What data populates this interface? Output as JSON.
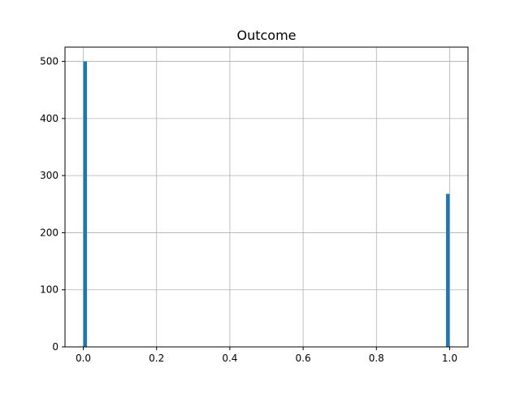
{
  "chart_data": {
    "type": "bar",
    "title": "Outcome",
    "xlabel": "",
    "ylabel": "",
    "xlim": [
      -0.05,
      1.05
    ],
    "ylim": [
      0,
      525
    ],
    "grid": true,
    "xticks": [
      0.0,
      0.2,
      0.4,
      0.6,
      0.8,
      1.0
    ],
    "xtick_labels": [
      "0.0",
      "0.2",
      "0.4",
      "0.6",
      "0.8",
      "1.0"
    ],
    "yticks": [
      0,
      100,
      200,
      300,
      400,
      500
    ],
    "ytick_labels": [
      "0",
      "100",
      "200",
      "300",
      "400",
      "500"
    ],
    "bins": [
      {
        "x0": 0.0,
        "x1": 0.01,
        "count": 500
      },
      {
        "x0": 0.99,
        "x1": 1.0,
        "count": 268
      }
    ],
    "bar_color": "#1f77b4"
  }
}
